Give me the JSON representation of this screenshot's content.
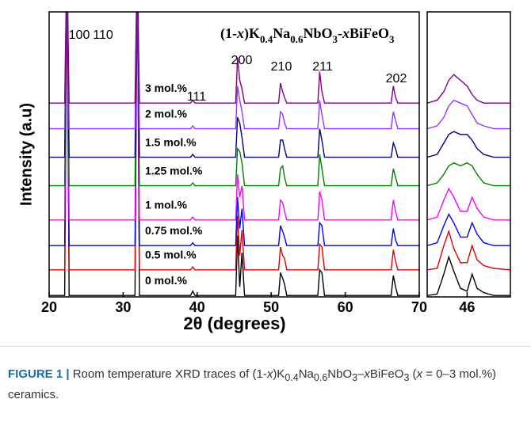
{
  "chart_data": [
    {
      "type": "line",
      "title": "(1-x)K0.4Na0.6NbO3-xBiFeO3",
      "xlabel": "2θ (degrees)",
      "ylabel": "Intensity (a.u)",
      "xlim": [
        20,
        70
      ],
      "xticks": [
        20,
        30,
        40,
        50,
        60,
        70
      ],
      "ylim": [
        0,
        100
      ],
      "annotations": [
        "100",
        "110",
        "111",
        "200",
        "210",
        "211",
        "202"
      ],
      "x": [
        20,
        22.1,
        22.4,
        22.7,
        31.6,
        31.9,
        32.2,
        39.1,
        39.4,
        39.7,
        45.2,
        45.45,
        45.75,
        46.05,
        46.4,
        51.0,
        51.25,
        51.55,
        51.8,
        52.1,
        56.3,
        56.55,
        56.85,
        57.2,
        66.2,
        66.5,
        66.8,
        67.1,
        70
      ],
      "series": [
        {
          "name": "0 mol.%",
          "color": "#000000",
          "values": [
            0.5,
            0.5,
            120,
            0.5,
            0.5,
            120,
            0.5,
            0.5,
            2,
            0.5,
            0.5,
            21.5,
            3.5,
            15.5,
            0.5,
            0.5,
            8.5,
            6.5,
            4.5,
            0.5,
            0.5,
            9.5,
            8.5,
            0.5,
            0.5,
            7.5,
            3.5,
            0.5,
            0.5
          ]
        },
        {
          "name": "0.5 mol.%",
          "color": "#e00000",
          "values": [
            9.5,
            9.5,
            120,
            9.5,
            9.5,
            120,
            9.5,
            9.5,
            10.5,
            9.5,
            9.5,
            28.5,
            14.5,
            23.5,
            9.5,
            9.5,
            17.5,
            14.5,
            13.5,
            9.5,
            9.5,
            18.5,
            17.5,
            9.5,
            9.5,
            16.5,
            12.5,
            9.5,
            9.5
          ]
        },
        {
          "name": "0.75 mol.%",
          "color": "#0000ff",
          "values": [
            18,
            18,
            120,
            18,
            18,
            120,
            18,
            18,
            19,
            18,
            18,
            35,
            24,
            31,
            18,
            18,
            25,
            23,
            21,
            18,
            18,
            26,
            25,
            18,
            18,
            24,
            20,
            18,
            18
          ]
        },
        {
          "name": "1 mol.%",
          "color": "#ff00ff",
          "values": [
            27,
            27,
            120,
            27,
            27,
            120,
            27,
            27,
            28,
            27,
            27,
            43,
            35,
            39,
            27,
            27,
            34,
            33,
            30,
            27,
            27,
            37,
            34,
            27,
            27,
            34,
            30,
            27,
            27
          ]
        },
        {
          "name": "1.25 mol.%",
          "color": "#008000",
          "values": [
            39,
            39,
            120,
            39,
            39,
            120,
            39,
            39,
            40,
            39,
            39,
            52,
            51,
            47,
            39,
            39,
            45,
            46,
            42,
            39,
            39,
            50,
            45,
            39,
            39,
            45,
            42,
            39,
            39
          ]
        },
        {
          "name": "1.5 mol.%",
          "color": "#000080",
          "values": [
            49,
            49,
            120,
            49,
            49,
            120,
            49,
            49,
            50,
            49,
            49,
            63,
            61,
            56,
            49,
            49,
            55,
            55,
            52,
            49,
            49,
            59,
            55,
            49,
            49,
            54,
            52,
            49,
            49
          ]
        },
        {
          "name": "2 mol.%",
          "color": "#9933ff",
          "values": [
            59,
            59,
            120,
            59,
            59,
            120,
            59,
            59,
            60,
            59,
            59,
            74,
            69,
            65,
            59,
            59,
            65,
            64,
            61,
            59,
            59,
            69,
            64,
            59,
            59,
            65,
            62,
            59,
            59
          ]
        },
        {
          "name": "3 mol.%",
          "color": "#800080",
          "values": [
            68,
            68,
            120,
            68,
            68,
            120,
            68,
            68,
            69,
            68,
            68,
            84,
            76,
            73,
            68,
            68,
            75,
            72,
            70,
            68,
            68,
            79,
            72,
            68,
            68,
            74,
            70,
            68,
            68
          ]
        }
      ]
    },
    {
      "type": "line",
      "xlim": [
        44.8,
        47.3
      ],
      "xticks": [
        46
      ],
      "ylim": [
        0,
        100
      ],
      "x": [
        44.8,
        45.1,
        45.3,
        45.45,
        45.6,
        45.8,
        46.0,
        46.15,
        46.3,
        46.5,
        46.8,
        47.3
      ],
      "series": [
        {
          "color": "#000000",
          "values": [
            0.5,
            1,
            8,
            14,
            9,
            3,
            2,
            8,
            3,
            1.5,
            0.5,
            0.5
          ]
        },
        {
          "color": "#e00000",
          "values": [
            9.5,
            10,
            18,
            23,
            17,
            12,
            12,
            18,
            13,
            11,
            10,
            9.5
          ]
        },
        {
          "color": "#0000ff",
          "values": [
            18,
            19,
            25,
            29,
            26,
            21,
            21,
            26,
            22,
            19,
            18,
            18
          ]
        },
        {
          "color": "#ff00ff",
          "values": [
            27,
            28,
            34,
            38,
            35,
            30,
            30,
            35,
            31,
            28,
            27,
            27
          ]
        },
        {
          "color": "#008000",
          "values": [
            39,
            40,
            43,
            46,
            47,
            46,
            47,
            46,
            43,
            40,
            39,
            39
          ]
        },
        {
          "color": "#000080",
          "values": [
            49,
            50,
            54,
            57,
            58,
            57,
            57,
            55,
            52,
            50,
            49,
            49
          ]
        },
        {
          "color": "#9933ff",
          "values": [
            59,
            60,
            63,
            67,
            69,
            68,
            67,
            64,
            61,
            60,
            59,
            59
          ]
        },
        {
          "color": "#800080",
          "values": [
            68,
            69,
            72,
            76,
            78,
            76,
            74,
            71,
            69,
            68,
            68,
            68
          ]
        }
      ]
    }
  ],
  "caption": {
    "label": "FIGURE 1 |",
    "text": "Room temperature XRD traces of (1-x)K0.4Na0.6NbO3–xBiFeO3 (x = 0–3 mol.%) ceramics."
  }
}
